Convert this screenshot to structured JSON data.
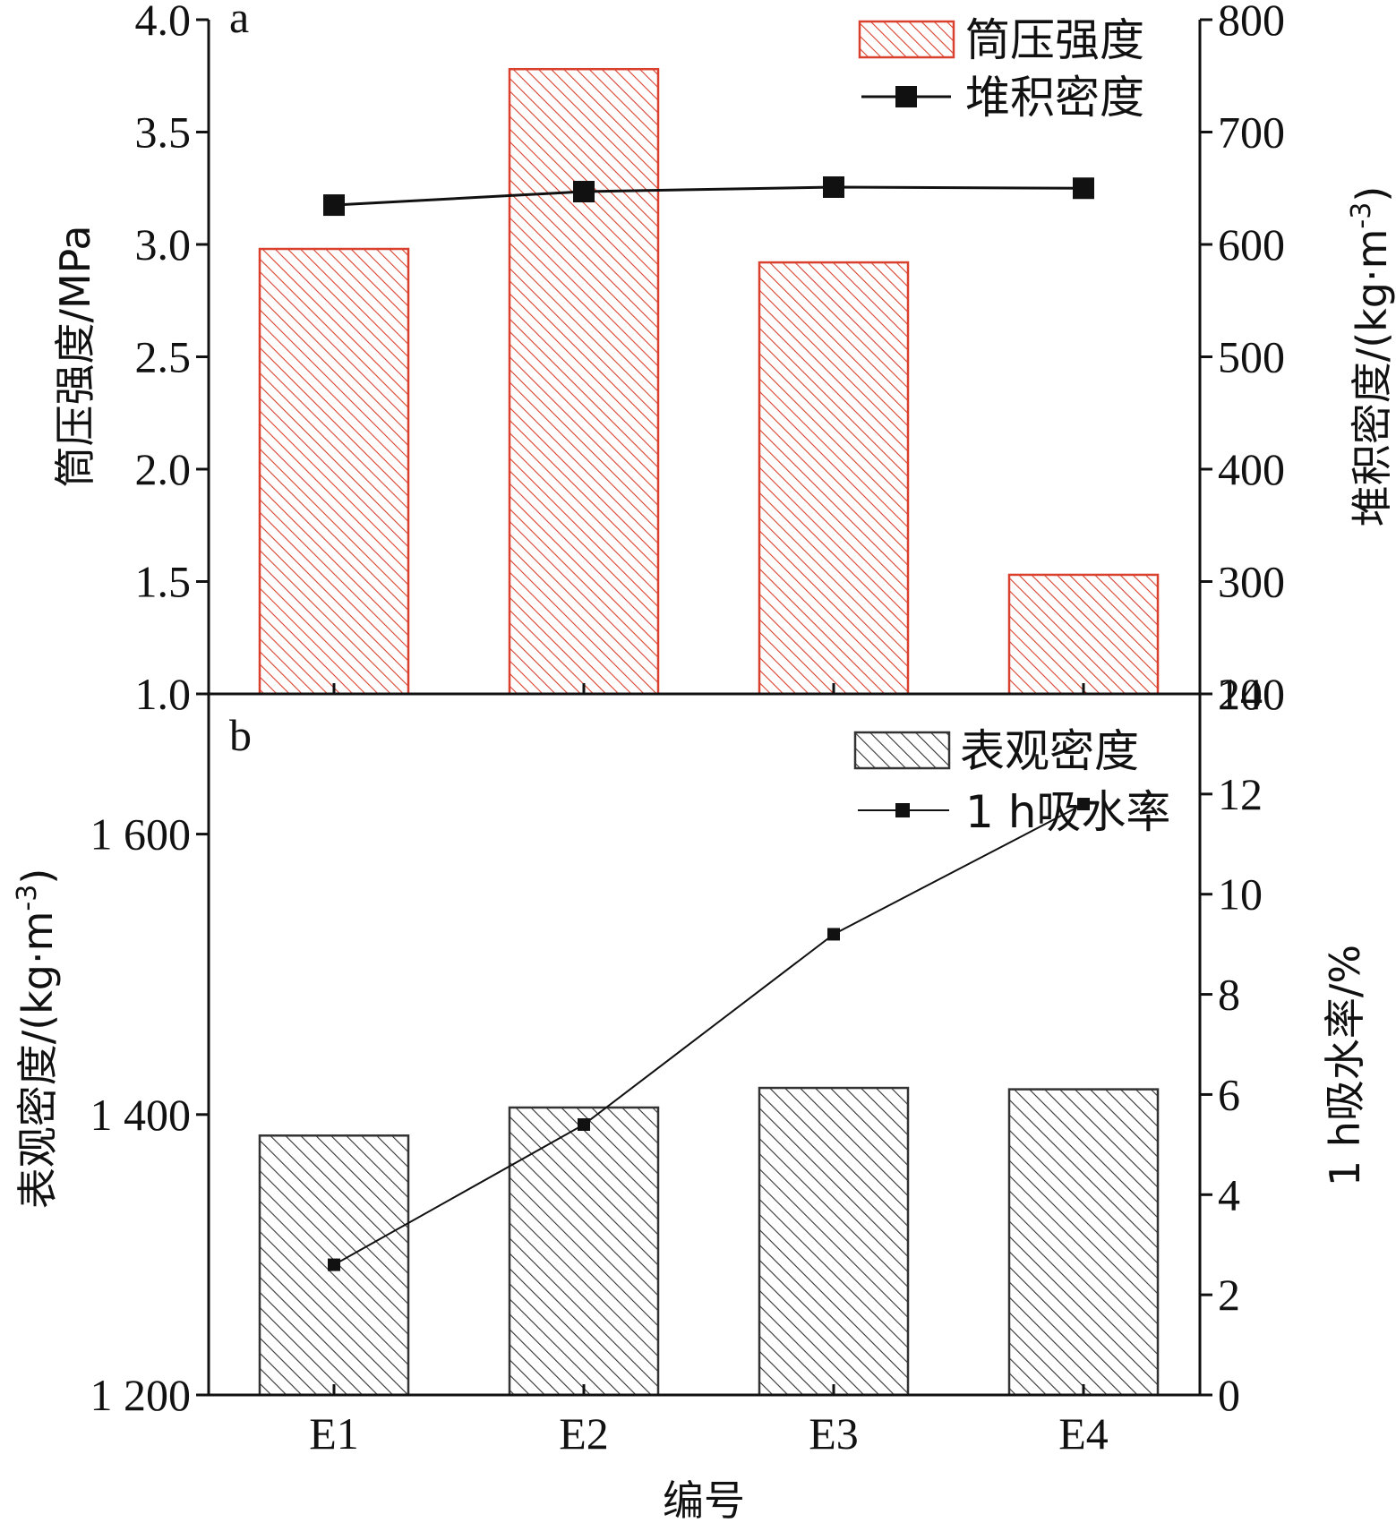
{
  "chart_data": [
    {
      "panel": "a",
      "type": "bar+line",
      "categories": [
        "E1",
        "E2",
        "E3",
        "E4"
      ],
      "bar_series": {
        "name": "筒压强度",
        "values": [
          2.98,
          3.78,
          2.92,
          1.53
        ],
        "ylim": [
          1.0,
          4.0
        ],
        "ticks": [
          1.0,
          1.5,
          2.0,
          2.5,
          3.0,
          3.5,
          4.0
        ],
        "tick_labels": [
          "1.0",
          "1.5",
          "2.0",
          "2.5",
          "3.0",
          "3.5",
          "4.0"
        ],
        "ylabel": "筒压强度/MPa",
        "color": "#d9412e"
      },
      "line_series": {
        "name": "堆积密度",
        "values": [
          635,
          647,
          651,
          650
        ],
        "ylim": [
          200,
          800
        ],
        "ticks": [
          200,
          300,
          400,
          500,
          600,
          700,
          800
        ],
        "tick_labels": [
          "200",
          "300",
          "400",
          "500",
          "600",
          "700",
          "800"
        ],
        "ylabel_prefix": "堆积密度/(kg·m",
        "ylabel_sup": "-3",
        "ylabel_suffix": ")",
        "color": "#111111"
      }
    },
    {
      "panel": "b",
      "type": "bar+line",
      "categories": [
        "E1",
        "E2",
        "E3",
        "E4"
      ],
      "bar_series": {
        "name": "表观密度",
        "values": [
          1385,
          1405,
          1419,
          1418
        ],
        "ylim": [
          1200,
          1700
        ],
        "ticks": [
          1200,
          1400,
          1600
        ],
        "tick_labels": [
          "1 200",
          "1 400",
          "1 600"
        ],
        "ylabel_prefix": "表观密度/(kg·m",
        "ylabel_sup": "-3",
        "ylabel_suffix": ")",
        "color": "#333333"
      },
      "line_series": {
        "name": "1 h吸水率",
        "values": [
          2.6,
          5.4,
          9.2,
          11.8
        ],
        "ylim": [
          0,
          14
        ],
        "ticks": [
          0,
          2,
          4,
          6,
          8,
          10,
          12,
          14
        ],
        "tick_labels": [
          "0",
          "2",
          "4",
          "6",
          "8",
          "10",
          "12",
          "14"
        ],
        "ylabel": "1 h吸水率/%",
        "color": "#111111"
      },
      "xlabel": "编号"
    }
  ]
}
